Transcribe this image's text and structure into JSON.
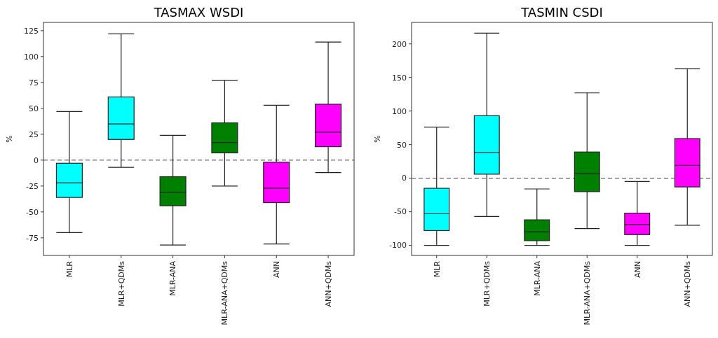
{
  "chart_data": [
    {
      "type": "box",
      "title": "TASMAX WSDI",
      "ylabel": "%",
      "categories": [
        "MLR",
        "MLR+QDMs",
        "MLR-ANA",
        "MLR-ANA+QDMs",
        "ANN",
        "ANN+QDMs"
      ],
      "colors": [
        "#00ffff",
        "#00ffff",
        "#008000",
        "#008000",
        "#ff00ff",
        "#ff00ff"
      ],
      "boxes": [
        {
          "low": -70,
          "q1": -36,
          "median": -22,
          "q3": -3,
          "high": 47
        },
        {
          "low": -7,
          "q1": 20,
          "median": 35,
          "q3": 61,
          "high": 122
        },
        {
          "low": -82,
          "q1": -44,
          "median": -31,
          "q3": -16,
          "high": 24
        },
        {
          "low": -25,
          "q1": 7,
          "median": 17,
          "q3": 36,
          "high": 77
        },
        {
          "low": -81,
          "q1": -41,
          "median": -27,
          "q3": -2,
          "high": 53
        },
        {
          "low": -12,
          "q1": 13,
          "median": 27,
          "q3": 54,
          "high": 114
        }
      ],
      "ylim": [
        -92,
        133
      ],
      "yticks": [
        -75,
        -50,
        -25,
        0,
        25,
        50,
        75,
        100,
        125
      ],
      "ref_lines": [
        {
          "axis": "y",
          "value": 0,
          "color": "#808080",
          "line_style": "dashed"
        }
      ]
    },
    {
      "type": "box",
      "title": "TASMIN CSDI",
      "ylabel": "%",
      "categories": [
        "MLR",
        "MLR+QDMs",
        "MLR-ANA",
        "MLR-ANA+QDMs",
        "ANN",
        "ANN+QDMs"
      ],
      "colors": [
        "#00ffff",
        "#00ffff",
        "#008000",
        "#008000",
        "#ff00ff",
        "#ff00ff"
      ],
      "boxes": [
        {
          "low": -100,
          "q1": -78,
          "median": -53,
          "q3": -15,
          "high": 76
        },
        {
          "low": -57,
          "q1": 6,
          "median": 38,
          "q3": 93,
          "high": 216
        },
        {
          "low": -100,
          "q1": -93,
          "median": -80,
          "q3": -62,
          "high": -16
        },
        {
          "low": -75,
          "q1": -20,
          "median": 7,
          "q3": 39,
          "high": 127
        },
        {
          "low": -100,
          "q1": -84,
          "median": -69,
          "q3": -52,
          "high": -5
        },
        {
          "low": -70,
          "q1": -13,
          "median": 19,
          "q3": 59,
          "high": 163
        }
      ],
      "ylim": [
        -115,
        232
      ],
      "yticks": [
        -100,
        -50,
        0,
        50,
        100,
        150,
        200
      ],
      "ref_lines": [
        {
          "axis": "y",
          "value": 0,
          "color": "#808080",
          "line_style": "dashed"
        }
      ]
    }
  ]
}
